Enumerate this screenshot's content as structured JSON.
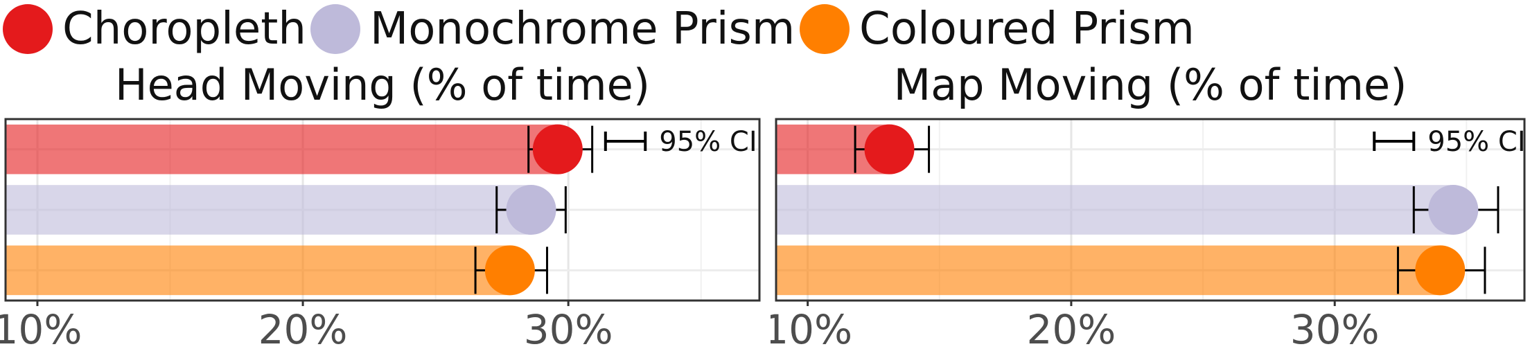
{
  "legend": [
    {
      "label": "Choropleth",
      "color": "#e41a1c"
    },
    {
      "label": "Monochrome Prism",
      "color": "#bebada"
    },
    {
      "label": "Coloured Prism",
      "color": "#ff7f00"
    }
  ],
  "chart_data": [
    {
      "type": "bar",
      "title": "Head Moving (% of time)",
      "xlabel": "",
      "ylabel": "",
      "xlim": [
        8.8,
        37.2
      ],
      "x_ticks": [
        "10%",
        "20%",
        "30%"
      ],
      "x_tick_values": [
        10,
        20,
        30
      ],
      "grid": true,
      "ci_label": "95% CI",
      "ci_legend": [
        31.4,
        32.9
      ],
      "categories": [
        "Choropleth",
        "Monochrome Prism",
        "Coloured Prism"
      ],
      "series": [
        {
          "name": "Choropleth",
          "color": "#e41a1c",
          "value": 29.6,
          "ci": [
            28.5,
            30.9
          ]
        },
        {
          "name": "Monochrome Prism",
          "color": "#bebada",
          "value": 28.6,
          "ci": [
            27.3,
            29.9
          ]
        },
        {
          "name": "Coloured Prism",
          "color": "#ff7f00",
          "value": 27.8,
          "ci": [
            26.5,
            29.2
          ]
        }
      ]
    },
    {
      "type": "bar",
      "title": "Map Moving (% of time)",
      "xlabel": "",
      "ylabel": "",
      "xlim": [
        8.8,
        37.2
      ],
      "x_ticks": [
        "10%",
        "20%",
        "30%"
      ],
      "x_tick_values": [
        10,
        20,
        30
      ],
      "grid": true,
      "ci_label": "95% CI",
      "ci_legend": [
        31.5,
        33.0
      ],
      "categories": [
        "Choropleth",
        "Monochrome Prism",
        "Coloured Prism"
      ],
      "series": [
        {
          "name": "Choropleth",
          "color": "#e41a1c",
          "value": 13.1,
          "ci": [
            11.8,
            14.6
          ]
        },
        {
          "name": "Monochrome Prism",
          "color": "#bebada",
          "value": 34.5,
          "ci": [
            33.0,
            36.2
          ]
        },
        {
          "name": "Coloured Prism",
          "color": "#ff7f00",
          "value": 34.0,
          "ci": [
            32.4,
            35.7
          ]
        }
      ]
    }
  ]
}
